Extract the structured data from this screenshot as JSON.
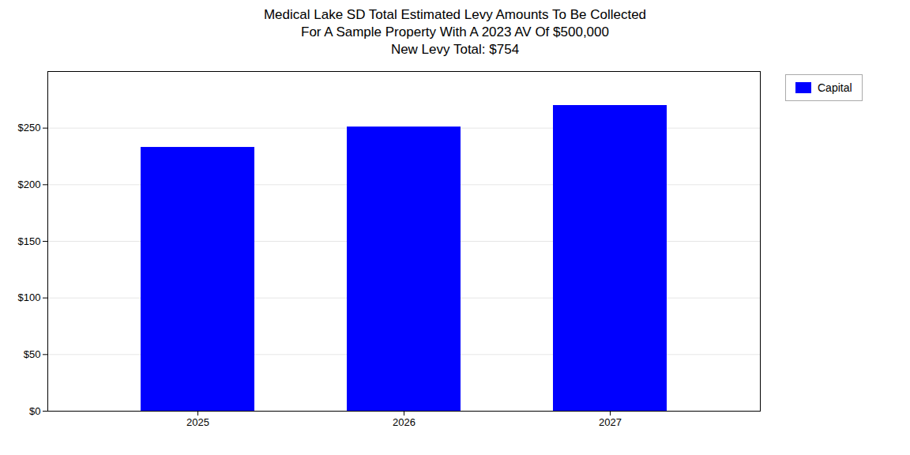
{
  "chart_data": {
    "type": "bar",
    "title": "Medical Lake SD Total Estimated Levy Amounts To Be Collected\nFor A Sample Property With A 2023 AV Of $500,000\nNew Levy Total: $754",
    "categories": [
      "2025",
      "2026",
      "2027"
    ],
    "series": [
      {
        "name": "Capital",
        "color": "#0000ff",
        "values": [
          233,
          251,
          270
        ]
      }
    ],
    "ylim": [
      0,
      300
    ],
    "yticks": [
      {
        "value": 0,
        "label": "$0"
      },
      {
        "value": 50,
        "label": "$50"
      },
      {
        "value": 100,
        "label": "$100"
      },
      {
        "value": 150,
        "label": "$150"
      },
      {
        "value": 200,
        "label": "$200"
      },
      {
        "value": 250,
        "label": "$250"
      }
    ],
    "grid": true,
    "legend": "right"
  }
}
